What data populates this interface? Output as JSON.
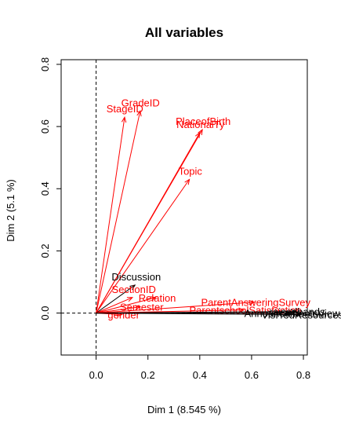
{
  "chart_data": {
    "type": "scatter",
    "title": "All variables",
    "xlabel": "Dim 1 (8.545 %)",
    "ylabel": "Dim 2 (5.1 %)",
    "xlim": [
      -0.135,
      0.815
    ],
    "ylim": [
      -0.135,
      0.815
    ],
    "xticks": [
      "0.0",
      "0.2",
      "0.4",
      "0.6",
      "0.8"
    ],
    "yticks": [
      "0.0",
      "0.2",
      "0.4",
      "0.6",
      "0.8"
    ],
    "xtick_values": [
      0.0,
      0.2,
      0.4,
      0.6,
      0.8
    ],
    "ytick_values": [
      0.0,
      0.2,
      0.4,
      0.6,
      0.8
    ],
    "reference_lines": {
      "x": 0,
      "y": 0,
      "style": "dashed"
    },
    "grid": false,
    "colors": {
      "active": "#ff0000",
      "supplementary": "#000000"
    },
    "variables": [
      {
        "label": "GradeID",
        "x": 0.17,
        "y": 0.65,
        "color": "#ff0000"
      },
      {
        "label": "StageID",
        "x": 0.11,
        "y": 0.63,
        "color": "#ff0000"
      },
      {
        "label": "PlaceofBirth",
        "x": 0.41,
        "y": 0.59,
        "color": "#ff0000"
      },
      {
        "label": "NationalTy",
        "x": 0.4,
        "y": 0.58,
        "color": "#ff0000"
      },
      {
        "label": "Topic",
        "x": 0.36,
        "y": 0.43,
        "color": "#ff0000"
      },
      {
        "label": "Discussion",
        "x": 0.15,
        "y": 0.09,
        "color": "#000000"
      },
      {
        "label": "Relation",
        "x": 0.23,
        "y": 0.05,
        "color": "#ff0000"
      },
      {
        "label": "SectionID",
        "x": 0.14,
        "y": 0.05,
        "color": "#ff0000"
      },
      {
        "label": "ParentAnsweringSurvey",
        "x": 0.61,
        "y": 0.035,
        "color": "#ff0000"
      },
      {
        "label": "Semester",
        "x": 0.17,
        "y": 0.02,
        "color": "#ff0000"
      },
      {
        "label": "ParentschoolSatisfaction",
        "x": 0.57,
        "y": 0.01,
        "color": "#ff0000"
      },
      {
        "label": "gender",
        "x": 0.1,
        "y": -0.005,
        "color": "#ff0000"
      },
      {
        "label": "raisedhands",
        "x": 0.77,
        "y": 0.005,
        "color": "#000000"
      },
      {
        "label": "AnnouncementsView",
        "x": 0.75,
        "y": 0.0,
        "color": "#000000"
      },
      {
        "label": "VisITedResources",
        "x": 0.79,
        "y": -0.005,
        "color": "#000000"
      }
    ]
  }
}
